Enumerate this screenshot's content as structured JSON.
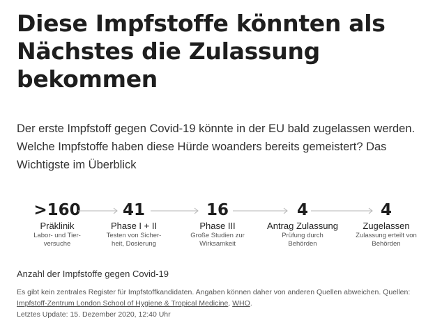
{
  "headline": "Diese Impfstoffe könnten als Nächstes die Zulassung bekommen",
  "intro": "Der erste Impfstoff gegen Covid-19 könnte in der EU bald zugelassen werden. Welche Impfstoffe haben diese Hürde woanders bereits gemeistert? Das Wichtigste im Überblick",
  "steps": [
    {
      "number": ">160",
      "label": "Präklinik",
      "desc_line1": "Labor- und Tier-",
      "desc_line2": "versuche"
    },
    {
      "number": "41",
      "label": "Phase I + II",
      "desc_line1": "Testen von Sicher-",
      "desc_line2": "heit, Dosierung"
    },
    {
      "number": "16",
      "label": "Phase III",
      "desc_line1": "Große Studien zur",
      "desc_line2": "Wirksamkeit"
    },
    {
      "number": "4",
      "label": "Antrag Zulassung",
      "desc_line1": "Prüfung durch",
      "desc_line2": "Behörden"
    },
    {
      "number": "4",
      "label": "Zugelassen",
      "desc_line1": "Zulassung erteilt von",
      "desc_line2": "Behörden"
    }
  ],
  "caption": "Anzahl der Impfstoffe gegen Covid-19",
  "note": {
    "text_before": "Es gibt kein zentrales Register für Impfstoffkandidaten. Angaben können daher von anderen Quellen abweichen. Quellen: ",
    "link1": "Impfstoff-Zentrum London School of Hygiene & Tropical Medicine",
    "separator": ", ",
    "link2": "WHO",
    "text_after": ".",
    "update": "Letztes Update: 15. Dezember 2020, 12:40 Uhr"
  },
  "colors": {
    "arrow": "#b5b5b5",
    "text": "#1e1e1e"
  }
}
